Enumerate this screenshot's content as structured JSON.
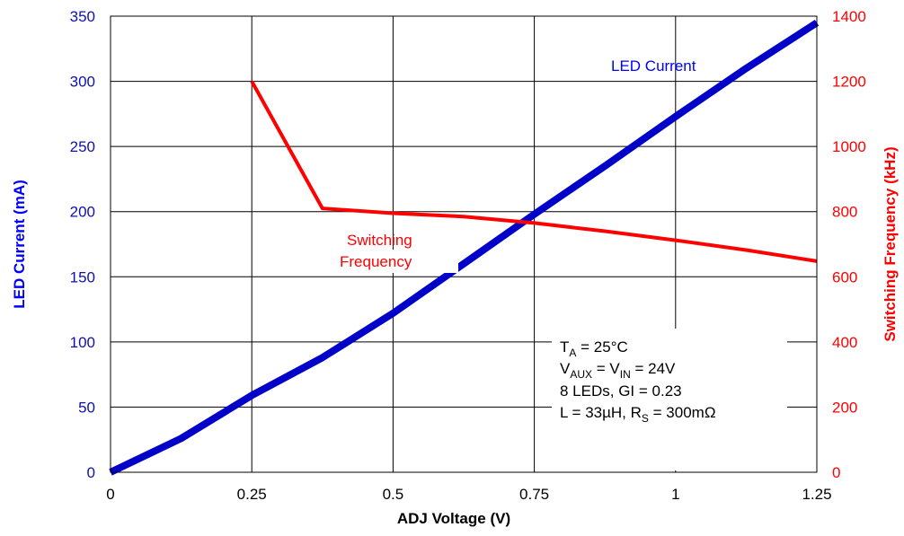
{
  "chart_data": {
    "type": "line",
    "xlabel": "ADJ Voltage (V)",
    "ylabel_left": "LED Current (mA)",
    "ylabel_right": "Switching Frequency (kHz)",
    "xlim": [
      0,
      1.25
    ],
    "ylim_left": [
      0,
      350
    ],
    "ylim_right": [
      0,
      1400
    ],
    "grid": true,
    "x_ticks": [
      "0",
      "0.25",
      "0.5",
      "0.75",
      "1",
      "1.25"
    ],
    "x_tick_values": [
      0,
      0.25,
      0.5,
      0.75,
      1,
      1.25
    ],
    "y_left_ticks": [
      "0",
      "50",
      "100",
      "150",
      "200",
      "250",
      "300",
      "350"
    ],
    "y_left_tick_values": [
      0,
      50,
      100,
      150,
      200,
      250,
      300,
      350
    ],
    "y_right_ticks": [
      "0",
      "200",
      "400",
      "600",
      "800",
      "1000",
      "1200",
      "1400"
    ],
    "y_right_tick_values": [
      0,
      200,
      400,
      600,
      800,
      1000,
      1200,
      1400
    ],
    "series": [
      {
        "name": "LED Current",
        "axis": "left",
        "color": "#0000c8",
        "x": [
          0,
          0.125,
          0.25,
          0.375,
          0.5,
          0.625,
          0.75,
          0.875,
          1.0,
          1.125,
          1.25
        ],
        "y": [
          0,
          26,
          59,
          88,
          122,
          160,
          198,
          235,
          273,
          310,
          345
        ]
      },
      {
        "name": "Switching Frequency",
        "axis": "right",
        "color": "#ff0000",
        "x": [
          0.25,
          0.375,
          0.5,
          0.625,
          0.75,
          0.875,
          1.0,
          1.125,
          1.25
        ],
        "y": [
          1200,
          810,
          795,
          785,
          765,
          740,
          712,
          682,
          648
        ]
      }
    ],
    "annotations": {
      "led_current_label": "LED Current",
      "switching_label_line1": "Switching",
      "switching_label_line2": "Frequency",
      "conditions": {
        "line1": {
          "main": "T",
          "sub": "A",
          "rest": " = 25°C"
        },
        "line2": {
          "v1": "V",
          "sub1": "AUX",
          "mid": " = V",
          "sub2": "IN",
          "rest": " = 24V"
        },
        "line3": "8 LEDs,  GI = 0.23",
        "line4": {
          "main": "L = 33µH,  R",
          "sub": "S",
          "rest": " = 300mΩ"
        }
      }
    }
  }
}
